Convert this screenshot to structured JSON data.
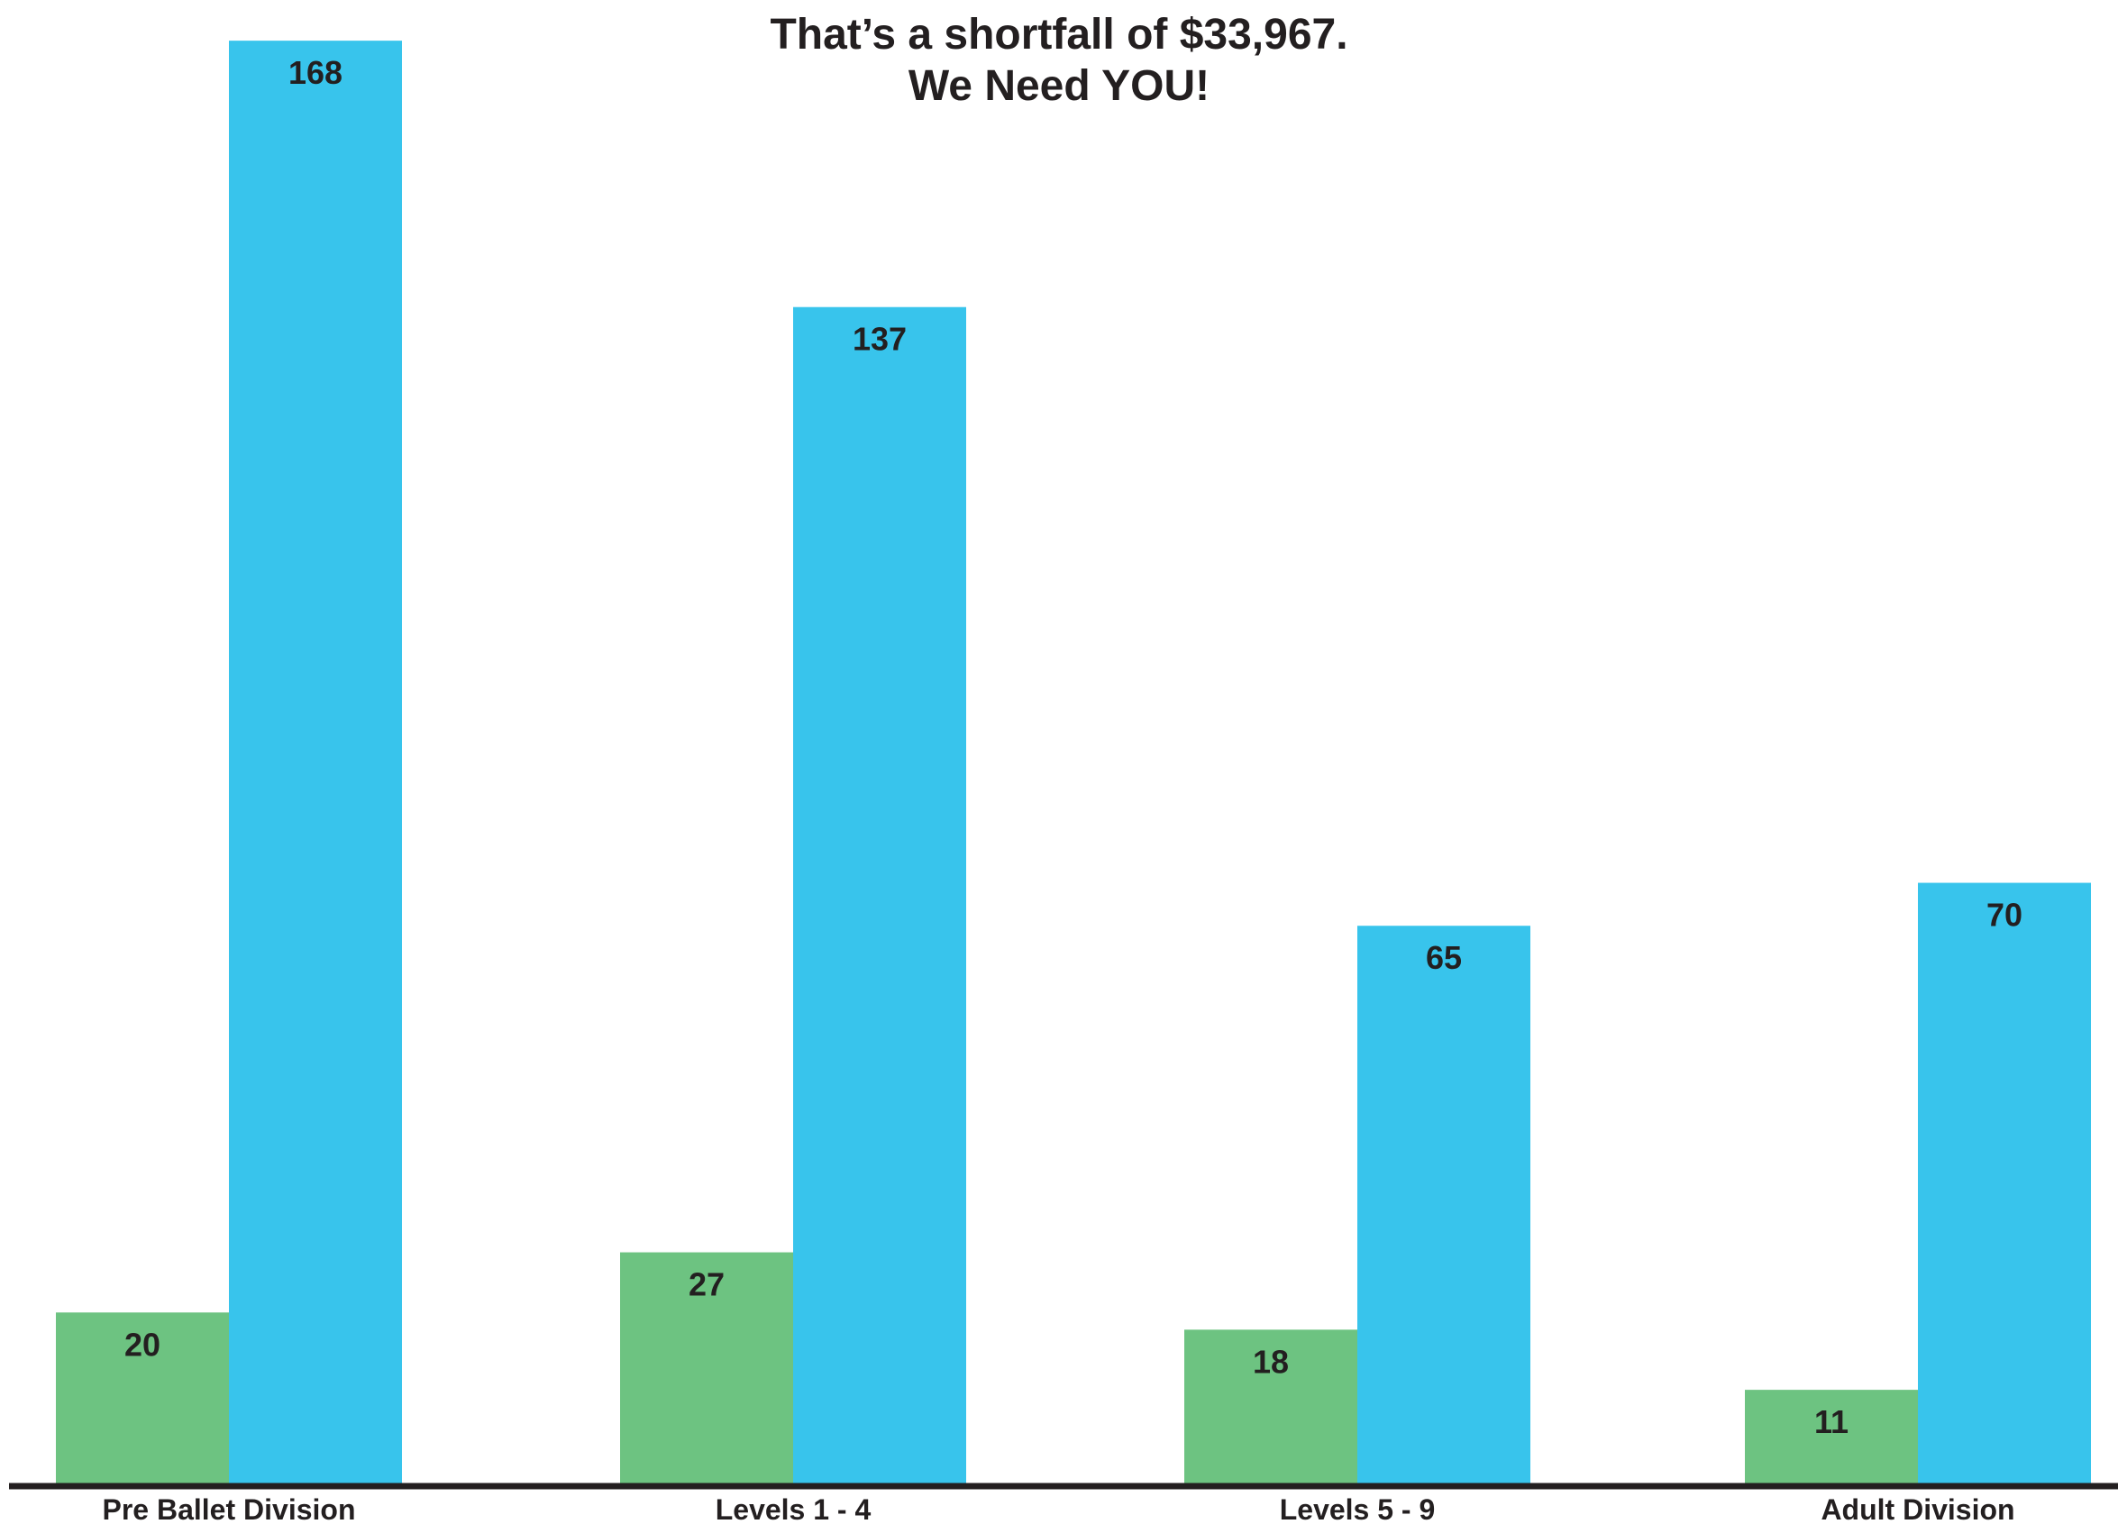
{
  "chart_data": {
    "type": "bar",
    "title_lines": [
      "That’s a shortfall of $33,967.",
      "We Need YOU!"
    ],
    "categories": [
      "Pre Ballet Division",
      "Levels 1 - 4",
      "Levels 5 - 9",
      "Adult Division"
    ],
    "series": [
      {
        "values": [
          20,
          27,
          18,
          11
        ],
        "color": "#6dc381"
      },
      {
        "values": [
          168,
          137,
          65,
          70
        ],
        "color": "#38c4ec"
      }
    ],
    "ylim": [
      0,
      172
    ],
    "xlabel": "",
    "ylabel": "",
    "grid": false,
    "legend": "none",
    "axis_color": "#231f20",
    "label_color": "#231f20"
  }
}
